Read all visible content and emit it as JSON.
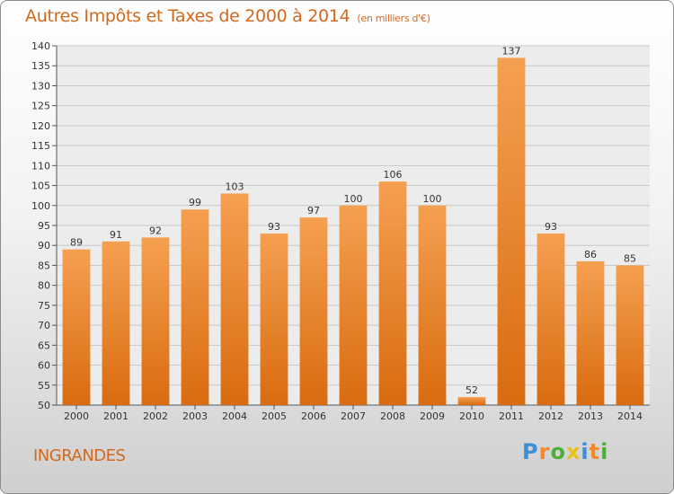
{
  "chart_data": {
    "type": "bar",
    "title": "Autres Impôts et Taxes de 2000 à 2014",
    "unit_label": "(en milliers d'€)",
    "categories": [
      "2000",
      "2001",
      "2002",
      "2003",
      "2004",
      "2005",
      "2006",
      "2007",
      "2008",
      "2009",
      "2010",
      "2011",
      "2012",
      "2013",
      "2014"
    ],
    "values": [
      89,
      91,
      92,
      99,
      103,
      93,
      97,
      100,
      106,
      100,
      52,
      137,
      93,
      86,
      85
    ],
    "ylim": [
      50,
      140
    ],
    "yticks": [
      50,
      55,
      60,
      65,
      70,
      75,
      80,
      85,
      90,
      95,
      100,
      105,
      110,
      115,
      120,
      125,
      130,
      135,
      140
    ],
    "grid": true,
    "bar_color": "#f28a2a",
    "text_color": "#d2691e"
  },
  "commune": "INGRANDES",
  "logo": {
    "letters": [
      "P",
      "r",
      "o",
      "x",
      "i",
      "t",
      "i"
    ],
    "colors": [
      "#3a8fd6",
      "#f28a2a",
      "#4caf3a",
      "#e8c21a",
      "#3a8fd6",
      "#f28a2a",
      "#4caf3a"
    ]
  }
}
